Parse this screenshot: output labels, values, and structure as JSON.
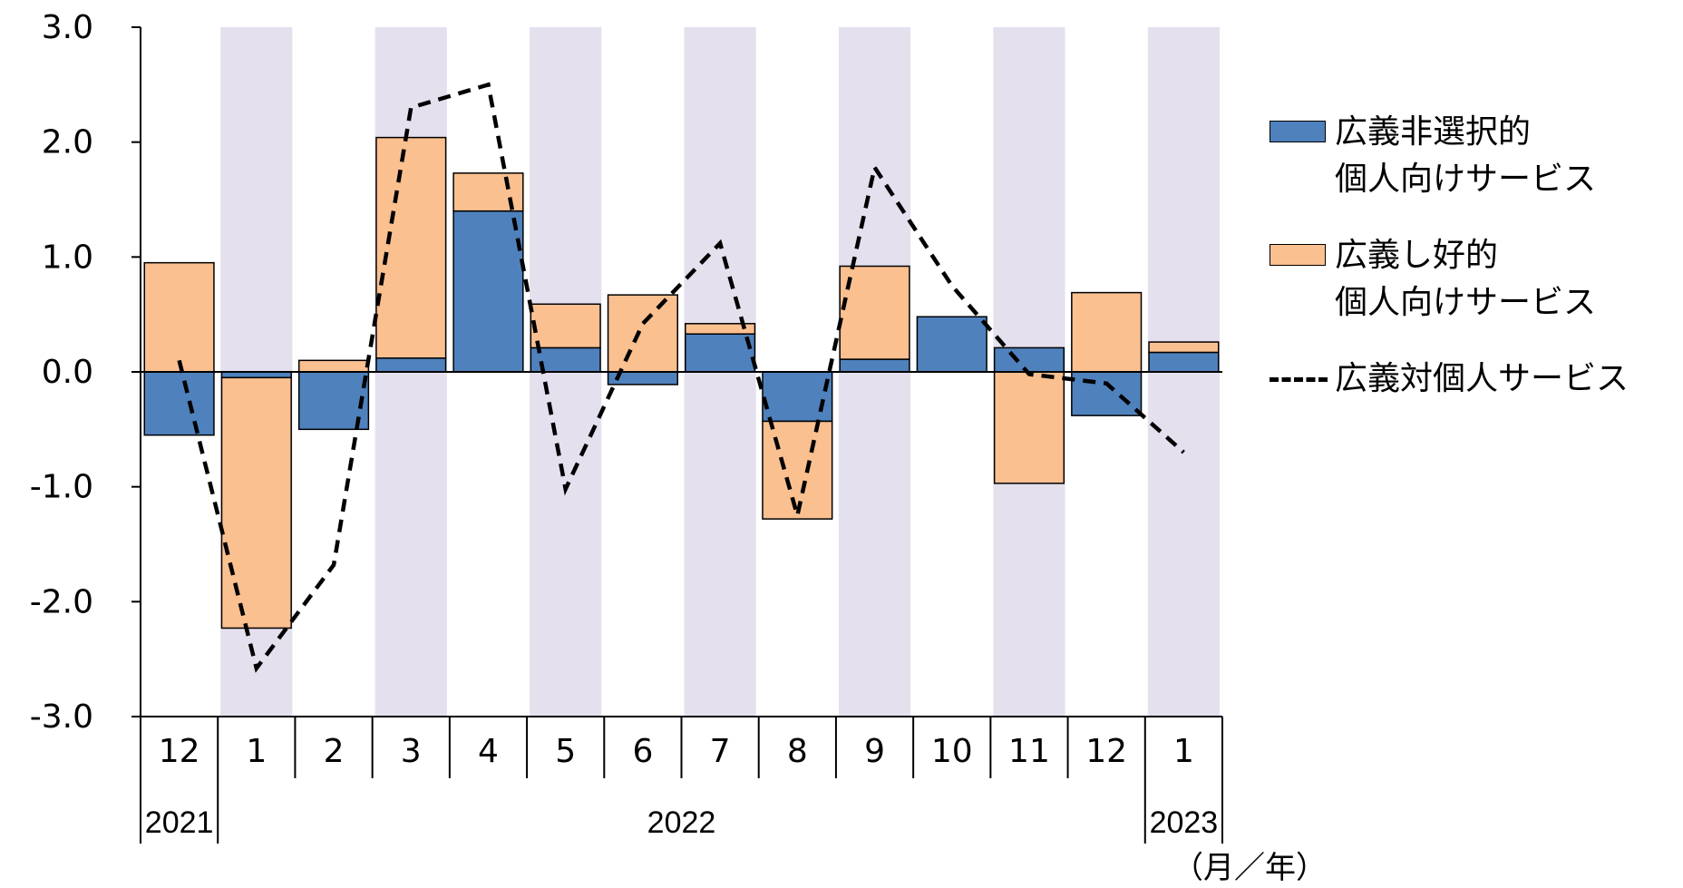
{
  "chart_data": {
    "type": "bar",
    "stacked": true,
    "categories": [
      "12",
      "1",
      "2",
      "3",
      "4",
      "5",
      "6",
      "7",
      "8",
      "9",
      "10",
      "11",
      "12",
      "1"
    ],
    "years": [
      {
        "label": "2021",
        "from": 0,
        "to": 0
      },
      {
        "label": "2022",
        "from": 1,
        "to": 12
      },
      {
        "label": "2023",
        "from": 13,
        "to": 13
      }
    ],
    "shaded_categories": [
      1,
      3,
      5,
      7,
      9,
      11,
      13
    ],
    "x_unit_label": "（月／年）",
    "ylim": [
      -3.0,
      3.0
    ],
    "y_ticks": [
      "3.0",
      "2.0",
      "1.0",
      "0.0",
      "-1.0",
      "-2.0",
      "-3.0"
    ],
    "y_tick_values": [
      3,
      2,
      1,
      0,
      -1,
      -2,
      -3
    ],
    "series": [
      {
        "name": "広義非選択的個人向けサービス",
        "name_lines": [
          "広義非選択的",
          "個人向けサービス"
        ],
        "kind": "bar",
        "color": "#4f81bd",
        "values": [
          -0.55,
          -0.05,
          -0.5,
          0.12,
          1.4,
          0.21,
          -0.11,
          0.33,
          -0.43,
          0.11,
          0.48,
          0.21,
          -0.38,
          0.17
        ]
      },
      {
        "name": "広義し好的個人向けサービス",
        "name_lines": [
          "広義し好的",
          "個人向けサービス"
        ],
        "kind": "bar",
        "color": "#fac090",
        "values": [
          0.95,
          -2.18,
          0.1,
          1.92,
          0.33,
          0.38,
          0.67,
          0.09,
          -0.85,
          0.81,
          0.0,
          -0.97,
          0.69,
          0.09
        ]
      },
      {
        "name": "広義対個人サービス",
        "name_lines": [
          "広義対個人サービス"
        ],
        "kind": "line",
        "style": "dashed",
        "color": "#000000",
        "values": [
          0.1,
          -2.58,
          -1.68,
          2.3,
          2.5,
          -1.02,
          0.42,
          1.12,
          -1.25,
          1.78,
          0.75,
          -0.02,
          -0.1,
          -0.7
        ]
      }
    ],
    "grid": false,
    "legend_position": "right"
  }
}
